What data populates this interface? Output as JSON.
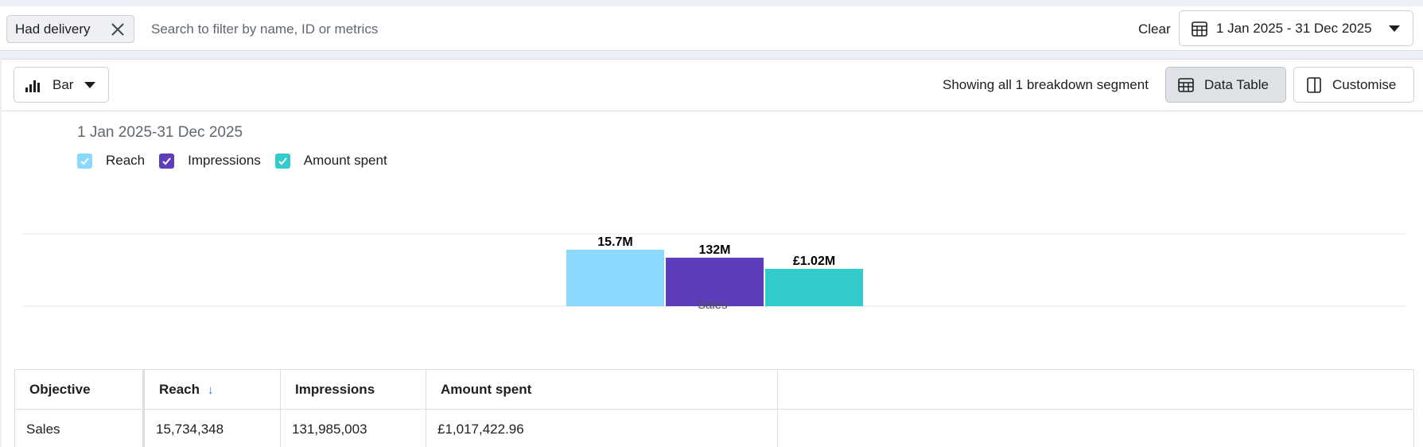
{
  "filter": {
    "chip_label": "Had delivery",
    "search_placeholder": "Search to filter by name, ID or metrics",
    "clear_label": "Clear",
    "date_range": "1 Jan 2025 - 31 Dec 2025"
  },
  "toolbar": {
    "chart_type": "Bar",
    "segment_text": "Showing all 1 breakdown segment",
    "data_table_label": "Data Table",
    "customise_label": "Customise"
  },
  "chart": {
    "range_label": "1 Jan 2025-31 Dec 2025"
  },
  "chart_data": {
    "type": "bar",
    "categories": [
      "Sales"
    ],
    "series": [
      {
        "name": "Reach",
        "values": [
          15734348
        ],
        "label": "15.7M",
        "color": "#8ad8fb"
      },
      {
        "name": "Impressions",
        "values": [
          131985003
        ],
        "label": "132M",
        "color": "#5e3dbd"
      },
      {
        "name": "Amount spent",
        "values": [
          1017422.96
        ],
        "label": "£1.02M",
        "color": "#31cccb"
      }
    ],
    "legend": "top-left",
    "grid": true
  },
  "table": {
    "columns": [
      "Objective",
      "Reach",
      "Impressions",
      "Amount spent"
    ],
    "sort_icon": "arrow-down-icon",
    "rows": [
      {
        "objective": "Sales",
        "reach": "15,734,348",
        "impressions": "131,985,003",
        "amount_spent": "£1,017,422.96"
      }
    ]
  }
}
